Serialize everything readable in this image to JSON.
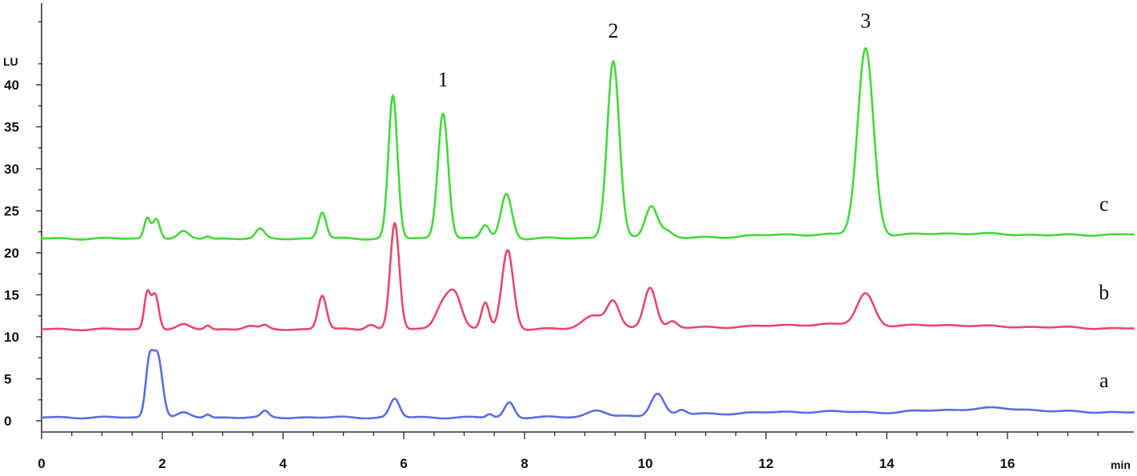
{
  "chart_data": {
    "type": "line",
    "title": "",
    "xlabel": "min",
    "ylabel": "LU",
    "xlim": [
      0,
      18
    ],
    "ylim": [
      -1,
      50
    ],
    "x_ticks": [
      0,
      2,
      4,
      6,
      8,
      10,
      12,
      14,
      16
    ],
    "y_ticks": [
      0,
      5,
      10,
      15,
      20,
      25,
      30,
      35,
      40
    ],
    "grid": false,
    "series": [
      {
        "name": "a",
        "color": "#5b6ee1",
        "baseline": 0.4,
        "baseline_points": [
          [
            0,
            0.4
          ],
          [
            8,
            0.4
          ],
          [
            9.8,
            0.5
          ],
          [
            11,
            0.8
          ],
          [
            12,
            1.0
          ],
          [
            13,
            1.1
          ],
          [
            14,
            1.0
          ],
          [
            15,
            1.3
          ],
          [
            15.8,
            1.5
          ],
          [
            17,
            1.1
          ],
          [
            18,
            1.0
          ]
        ],
        "peaks": [
          {
            "rt": 1.78,
            "height": 5.8,
            "width": 0.06
          },
          {
            "rt": 1.92,
            "height": 7.5,
            "width": 0.08
          },
          {
            "rt": 2.35,
            "height": 0.5,
            "width": 0.1
          },
          {
            "rt": 2.75,
            "height": 0.4,
            "width": 0.05
          },
          {
            "rt": 3.7,
            "height": 0.7,
            "width": 0.06
          },
          {
            "rt": 5.85,
            "height": 2.2,
            "width": 0.08
          },
          {
            "rt": 7.42,
            "height": 0.4,
            "width": 0.05
          },
          {
            "rt": 7.75,
            "height": 1.8,
            "width": 0.08
          },
          {
            "rt": 9.2,
            "height": 0.8,
            "width": 0.15
          },
          {
            "rt": 10.2,
            "height": 2.7,
            "width": 0.11
          },
          {
            "rt": 10.6,
            "height": 0.6,
            "width": 0.08
          }
        ]
      },
      {
        "name": "b",
        "color": "#e8486a",
        "baseline": 10.9,
        "baseline_points": [
          [
            0,
            10.9
          ],
          [
            8,
            10.9
          ],
          [
            9.8,
            11.0
          ],
          [
            11,
            11.1
          ],
          [
            12,
            11.3
          ],
          [
            13,
            11.5
          ],
          [
            14,
            11.3
          ],
          [
            15,
            11.4
          ],
          [
            16,
            11.2
          ],
          [
            18,
            11.0
          ]
        ],
        "peaks": [
          {
            "rt": 1.75,
            "height": 4.2,
            "width": 0.05
          },
          {
            "rt": 1.88,
            "height": 4.2,
            "width": 0.06
          },
          {
            "rt": 2.35,
            "height": 0.5,
            "width": 0.1
          },
          {
            "rt": 2.75,
            "height": 0.5,
            "width": 0.05
          },
          {
            "rt": 3.45,
            "height": 0.4,
            "width": 0.1
          },
          {
            "rt": 3.7,
            "height": 0.4,
            "width": 0.06
          },
          {
            "rt": 4.65,
            "height": 4.0,
            "width": 0.07
          },
          {
            "rt": 5.45,
            "height": 0.6,
            "width": 0.08
          },
          {
            "rt": 5.85,
            "height": 12.6,
            "width": 0.075
          },
          {
            "rt": 6.65,
            "height": 3.0,
            "width": 0.12
          },
          {
            "rt": 6.85,
            "height": 3.8,
            "width": 0.11
          },
          {
            "rt": 7.35,
            "height": 3.2,
            "width": 0.065
          },
          {
            "rt": 7.72,
            "height": 9.4,
            "width": 0.095
          },
          {
            "rt": 9.15,
            "height": 1.6,
            "width": 0.18
          },
          {
            "rt": 9.47,
            "height": 3.0,
            "width": 0.1
          },
          {
            "rt": 10.08,
            "height": 4.9,
            "width": 0.1
          },
          {
            "rt": 10.45,
            "height": 0.8,
            "width": 0.08
          },
          {
            "rt": 13.65,
            "height": 3.8,
            "width": 0.14
          }
        ]
      },
      {
        "name": "c",
        "color": "#45d83a",
        "baseline": 21.7,
        "baseline_points": [
          [
            0,
            21.7
          ],
          [
            8,
            21.7
          ],
          [
            9.5,
            21.8
          ],
          [
            11,
            21.8
          ],
          [
            12,
            22.1
          ],
          [
            13,
            22.2
          ],
          [
            14,
            22.1
          ],
          [
            15,
            22.3
          ],
          [
            17,
            22.1
          ],
          [
            18,
            22.2
          ]
        ],
        "peaks": [
          {
            "rt": 1.75,
            "height": 2.4,
            "width": 0.05
          },
          {
            "rt": 1.9,
            "height": 2.4,
            "width": 0.06
          },
          {
            "rt": 2.35,
            "height": 0.8,
            "width": 0.08
          },
          {
            "rt": 2.75,
            "height": 0.3,
            "width": 0.05
          },
          {
            "rt": 3.62,
            "height": 1.1,
            "width": 0.07
          },
          {
            "rt": 4.65,
            "height": 3.1,
            "width": 0.065
          },
          {
            "rt": 5.82,
            "height": 17.0,
            "width": 0.075
          },
          {
            "rt": 6.65,
            "height": 15.0,
            "width": 0.085
          },
          {
            "rt": 7.35,
            "height": 1.6,
            "width": 0.07
          },
          {
            "rt": 7.7,
            "height": 5.3,
            "width": 0.09
          },
          {
            "rt": 9.47,
            "height": 21.0,
            "width": 0.1
          },
          {
            "rt": 10.1,
            "height": 3.8,
            "width": 0.1
          },
          {
            "rt": 10.35,
            "height": 0.8,
            "width": 0.1
          },
          {
            "rt": 13.65,
            "height": 22.2,
            "width": 0.13
          }
        ]
      }
    ],
    "peak_annotations": [
      {
        "label": "1",
        "x": 6.65,
        "y": 39.8
      },
      {
        "label": "2",
        "x": 9.47,
        "y": 45.6
      },
      {
        "label": "3",
        "x": 13.65,
        "y": 46.8
      }
    ],
    "trace_labels": [
      {
        "label": "a",
        "x": 17.6,
        "y": 4
      },
      {
        "label": "b",
        "x": 17.6,
        "y": 14.5
      },
      {
        "label": "c",
        "x": 17.6,
        "y": 25
      }
    ]
  }
}
